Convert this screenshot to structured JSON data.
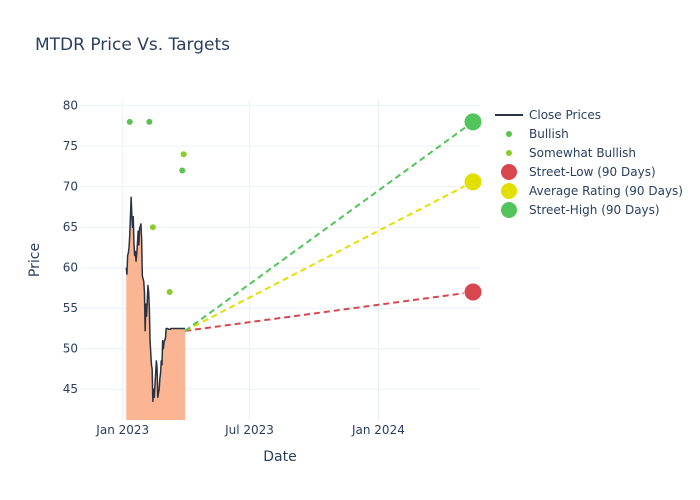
{
  "chart_data": {
    "type": "line",
    "title": "MTDR Price Vs. Targets",
    "xlabel": "Date",
    "ylabel": "Price",
    "xlim": [
      "2022-11-01",
      "2024-05-25"
    ],
    "ylim": [
      41.2,
      80.7
    ],
    "x_ticks": [
      {
        "date": "2023-01-01",
        "label": "Jan 2023"
      },
      {
        "date": "2023-07-01",
        "label": "Jul 2023"
      },
      {
        "date": "2024-01-01",
        "label": "Jan 2024"
      }
    ],
    "y_ticks": [
      45,
      50,
      55,
      60,
      65,
      70,
      75,
      80
    ],
    "grid": true,
    "legend_position": "right",
    "colors": {
      "close": "#2a3342",
      "fill": "#fbb592",
      "bullish": "#5bc150",
      "somewhat_bullish": "#8ccc2a",
      "street_low": "#d7474d",
      "average": "#e2e000",
      "street_high": "#52c55a",
      "grid": "#ebf0f8",
      "text": "#2a3f5f"
    },
    "legend": [
      {
        "label": "Close Prices",
        "kind": "line",
        "color": "#2a3342"
      },
      {
        "label": "Bullish",
        "kind": "dot",
        "color": "#5bc150"
      },
      {
        "label": "Somewhat Bullish",
        "kind": "dot",
        "color": "#8ccc2a"
      },
      {
        "label": "Street-Low (90 Days)",
        "kind": "circle",
        "color": "#d7474d"
      },
      {
        "label": "Average Rating (90 Days)",
        "kind": "circle",
        "color": "#e2e000"
      },
      {
        "label": "Street-High (90 Days)",
        "kind": "circle",
        "color": "#52c55a"
      }
    ],
    "series": [
      {
        "name": "Close Prices",
        "type": "line",
        "x": [
          "2023-01-06",
          "2023-01-07",
          "2023-01-08",
          "2023-01-09",
          "2023-01-10",
          "2023-01-11",
          "2023-01-13",
          "2023-01-14",
          "2023-01-15",
          "2023-01-16",
          "2023-01-17",
          "2023-01-18",
          "2023-01-19",
          "2023-01-20",
          "2023-01-21",
          "2023-01-22",
          "2023-01-23",
          "2023-01-24",
          "2023-01-25",
          "2023-01-27",
          "2023-01-28",
          "2023-01-29",
          "2023-01-31",
          "2023-02-01",
          "2023-02-02",
          "2023-02-03",
          "2023-02-04",
          "2023-02-05",
          "2023-02-06",
          "2023-02-07",
          "2023-02-08",
          "2023-02-09",
          "2023-02-11",
          "2023-02-12",
          "2023-02-13",
          "2023-02-14",
          "2023-02-15",
          "2023-02-17",
          "2023-02-18",
          "2023-02-19",
          "2023-02-20",
          "2023-02-22",
          "2023-02-23",
          "2023-02-24",
          "2023-02-25",
          "2023-02-26",
          "2023-02-27",
          "2023-02-28",
          "2023-03-01",
          "2023-03-03",
          "2023-03-04",
          "2023-03-05",
          "2023-03-06",
          "2023-03-07",
          "2023-03-08",
          "2023-03-09",
          "2023-03-10",
          "2023-03-11",
          "2023-03-12",
          "2023-03-13",
          "2023-03-14",
          "2023-03-15",
          "2023-03-16",
          "2023-03-18",
          "2023-03-19",
          "2023-03-20",
          "2023-03-21",
          "2023-03-23",
          "2023-03-24",
          "2023-03-25",
          "2023-03-26",
          "2023-03-27",
          "2023-03-29",
          "2023-03-30",
          "2023-03-31"
        ],
        "y": [
          60.0,
          59.2,
          61.5,
          61.8,
          62.5,
          64.0,
          68.7,
          66.5,
          65.0,
          66.3,
          63.0,
          61.5,
          62.0,
          60.8,
          61.7,
          63.0,
          64.5,
          62.8,
          64.8,
          65.4,
          63.5,
          59.0,
          58.3,
          57.0,
          52.2,
          55.5,
          54.0,
          55.8,
          57.8,
          57.0,
          55.0,
          51.0,
          48.0,
          47.5,
          43.5,
          45.0,
          44.0,
          47.0,
          48.5,
          47.7,
          44.0,
          45.0,
          46.3,
          47.0,
          48.5,
          48.0,
          51.0,
          50.0,
          50.8,
          51.3,
          52.5,
          52.5,
          52.5,
          52.4,
          52.4,
          52.4,
          52.4,
          52.5,
          52.5,
          52.5,
          52.5,
          52.5,
          52.5,
          52.5,
          52.5,
          52.5,
          52.5,
          52.5,
          52.5,
          52.5,
          52.5,
          52.5,
          52.5,
          52.5,
          52.5
        ]
      },
      {
        "name": "Bullish",
        "type": "scatter",
        "x": [
          "2023-01-11",
          "2023-02-08",
          "2023-03-27"
        ],
        "y": [
          78,
          78,
          72
        ]
      },
      {
        "name": "Somewhat Bullish",
        "type": "scatter",
        "x": [
          "2023-02-13",
          "2023-03-09",
          "2023-03-29"
        ],
        "y": [
          65,
          57,
          74
        ]
      },
      {
        "name": "Street-Low (90 Days)",
        "type": "projection",
        "x": [
          "2023-03-31",
          "2024-05-15"
        ],
        "y": [
          52.2,
          57
        ]
      },
      {
        "name": "Average Rating (90 Days)",
        "type": "projection",
        "x": [
          "2023-03-31",
          "2024-05-15"
        ],
        "y": [
          52.2,
          70.6
        ]
      },
      {
        "name": "Street-High (90 Days)",
        "type": "projection",
        "x": [
          "2023-03-31",
          "2024-05-15"
        ],
        "y": [
          52.2,
          78
        ]
      }
    ]
  }
}
